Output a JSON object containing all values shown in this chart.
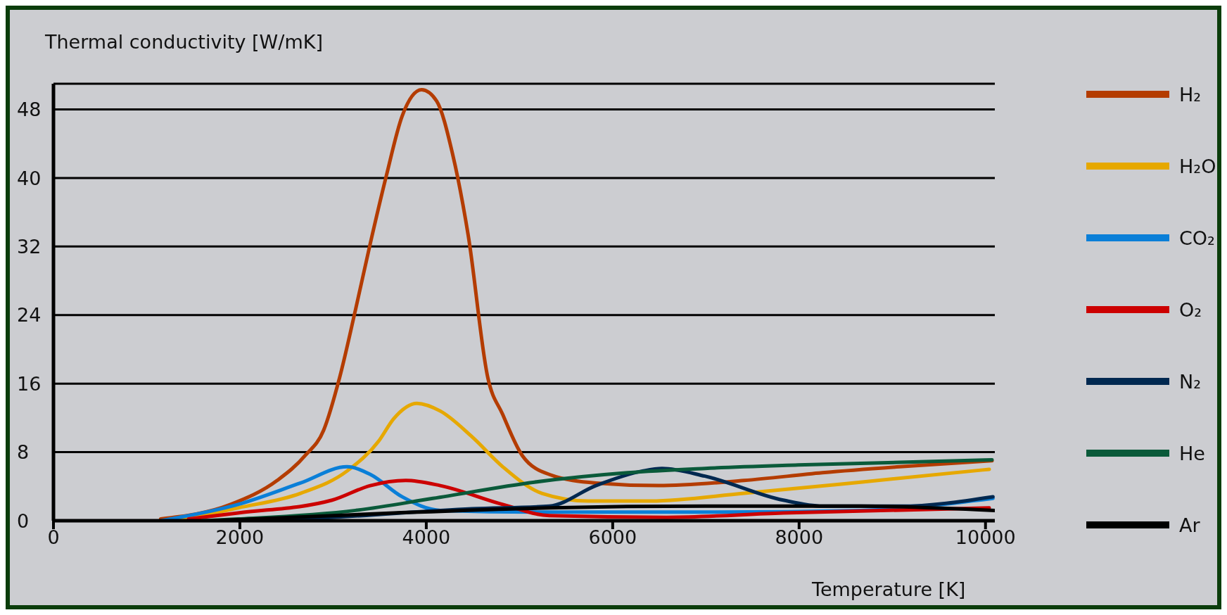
{
  "chart_data": {
    "type": "line",
    "xlabel": "Temperature [K]",
    "ylabel": "Thermal conductivity [W/mK]",
    "xlim": [
      0,
      10100
    ],
    "xticks": [
      0,
      2000,
      4000,
      6000,
      8000,
      10000
    ],
    "ylim": [
      0,
      51
    ],
    "yticks": [
      0,
      8,
      16,
      24,
      32,
      40,
      48
    ],
    "grid": "y",
    "legend": "right",
    "marker": "none",
    "line_style": "solid",
    "series": [
      {
        "name": "H₂",
        "color": "#b43c00",
        "x": [
          1150,
          1900,
          2400,
          2700,
          2900,
          3070,
          3240,
          3400,
          3570,
          3740,
          3950,
          4110,
          4280,
          4450,
          4660,
          4820,
          5030,
          5320,
          5820,
          6490,
          7410,
          8250,
          9080,
          10070
        ],
        "values": [
          0.2,
          1.9,
          4.7,
          7.6,
          10.6,
          16.7,
          24.6,
          32.4,
          40.2,
          47.2,
          50.3,
          49,
          42.9,
          33.3,
          16.7,
          12.4,
          7.6,
          5.4,
          4.4,
          4.1,
          4.7,
          5.6,
          6.3,
          7.0
        ]
      },
      {
        "name": "H₂O",
        "color": "#e6a800",
        "x": [
          1300,
          1980,
          2650,
          3150,
          3490,
          3650,
          3900,
          4150,
          4490,
          4820,
          5240,
          5740,
          6410,
          7410,
          8660,
          10040
        ],
        "values": [
          0,
          1.5,
          3.2,
          5.8,
          9.3,
          11.9,
          13.7,
          12.8,
          9.8,
          6.3,
          3.2,
          2.3,
          2.3,
          3.2,
          4.5,
          6.0
        ]
      },
      {
        "name": "CO₂",
        "color": "#0a7fd8",
        "x": [
          1150,
          1980,
          2650,
          3150,
          3400,
          3740,
          4150,
          5320,
          7000,
          8660,
          10080
        ],
        "values": [
          0,
          1.9,
          4.4,
          6.3,
          5.4,
          2.8,
          1.2,
          1.0,
          1.0,
          1.2,
          2.6
        ]
      },
      {
        "name": "O₂",
        "color": "#cc0000",
        "x": [
          1450,
          1980,
          2990,
          3400,
          3780,
          4150,
          4820,
          5320,
          6580,
          7830,
          10040
        ],
        "values": [
          0.2,
          0.9,
          2.4,
          4.1,
          4.7,
          4.1,
          1.9,
          0.6,
          0.4,
          0.9,
          1.5
        ]
      },
      {
        "name": "N₂",
        "color": "#002850",
        "x": [
          1700,
          2820,
          4490,
          5320,
          5820,
          6320,
          6530,
          6990,
          7830,
          8250,
          9080,
          10080
        ],
        "values": [
          0,
          0.3,
          1.4,
          1.7,
          4.1,
          5.8,
          6.1,
          5.2,
          2.4,
          1.7,
          1.7,
          2.8
        ]
      },
      {
        "name": "He",
        "color": "#0a5a3a",
        "x": [
          1600,
          1980,
          3240,
          4070,
          5160,
          6160,
          6990,
          7990,
          10070
        ],
        "values": [
          0,
          0.2,
          1.2,
          2.6,
          4.5,
          5.6,
          6.1,
          6.5,
          7.1
        ]
      },
      {
        "name": "Ar",
        "color": "#000000",
        "x": [
          1700,
          3650,
          5320,
          6990,
          8660,
          10100
        ],
        "values": [
          0,
          0.9,
          1.5,
          1.7,
          1.7,
          1.2
        ]
      }
    ]
  }
}
